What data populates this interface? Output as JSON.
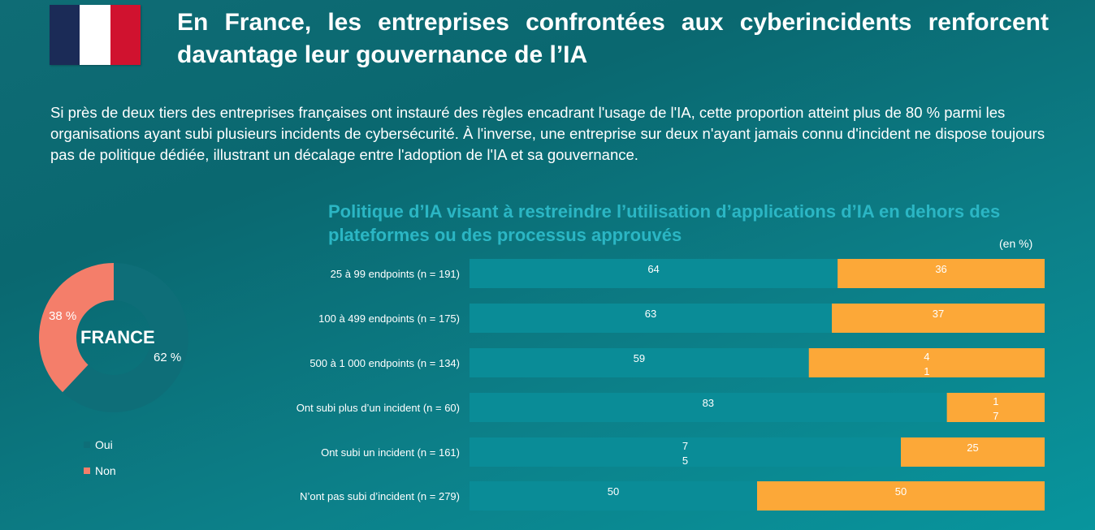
{
  "header": {
    "title": "En France, les entreprises confrontées aux cyberincidents renforcent davantage leur gouvernance de l’IA",
    "intro": "Si près de deux tiers des entreprises françaises ont instauré des règles encadrant l'usage de l'IA, cette proportion atteint plus de 80 % parmi les organisations ayant subi plusieurs incidents de cybersécurité. À l'inverse, une entreprise sur deux n'ayant jamais connu d'incident ne dispose toujours pas de politique dédiée, illustrant un décalage entre l'adoption de l'IA et sa gouvernance."
  },
  "colors": {
    "flag_blue": "#1b2b57",
    "flag_red": "#d0122f",
    "oui": "#0e6e78",
    "non": "#f47e6a",
    "bar_oui": "#0a8c97",
    "bar_non": "#fca838",
    "chart_title": "#2bb6c4"
  },
  "chart_data": [
    {
      "type": "pie",
      "center_label": "FRANCE",
      "slices": [
        {
          "name": "Oui",
          "value": 62,
          "label": "62 %"
        },
        {
          "name": "Non",
          "value": 38,
          "label": "38 %"
        }
      ],
      "legend": [
        "Oui",
        "Non"
      ],
      "legend_position": "bottom"
    },
    {
      "type": "bar",
      "orientation": "horizontal-stacked",
      "title": "Politique d’IA visant à restreindre l’utilisation d’applications d’IA en dehors des plateformes ou des processus approuvés",
      "unit": "(en %)",
      "categories": [
        "25 à 99 endpoints (n = 191)",
        "100 à 499 endpoints (n = 175)",
        "500 à 1 000 endpoints (n = 134)",
        "Ont subi plus d’un incident (n = 60)",
        "Ont subi un incident (n = 161)",
        "N’ont pas subi d’incident (n = 279)"
      ],
      "series": [
        {
          "name": "Oui",
          "values": [
            64,
            63,
            59,
            83,
            75,
            50
          ]
        },
        {
          "name": "Non",
          "values": [
            36,
            37,
            41,
            17,
            25,
            50
          ]
        }
      ],
      "value_labels": [
        [
          "64",
          "36"
        ],
        [
          "63",
          "37"
        ],
        [
          "59",
          "4\n1"
        ],
        [
          "83",
          "1\n7"
        ],
        [
          "7\n5",
          "25"
        ],
        [
          "50",
          "50"
        ]
      ],
      "xlim": [
        0,
        100
      ]
    }
  ]
}
